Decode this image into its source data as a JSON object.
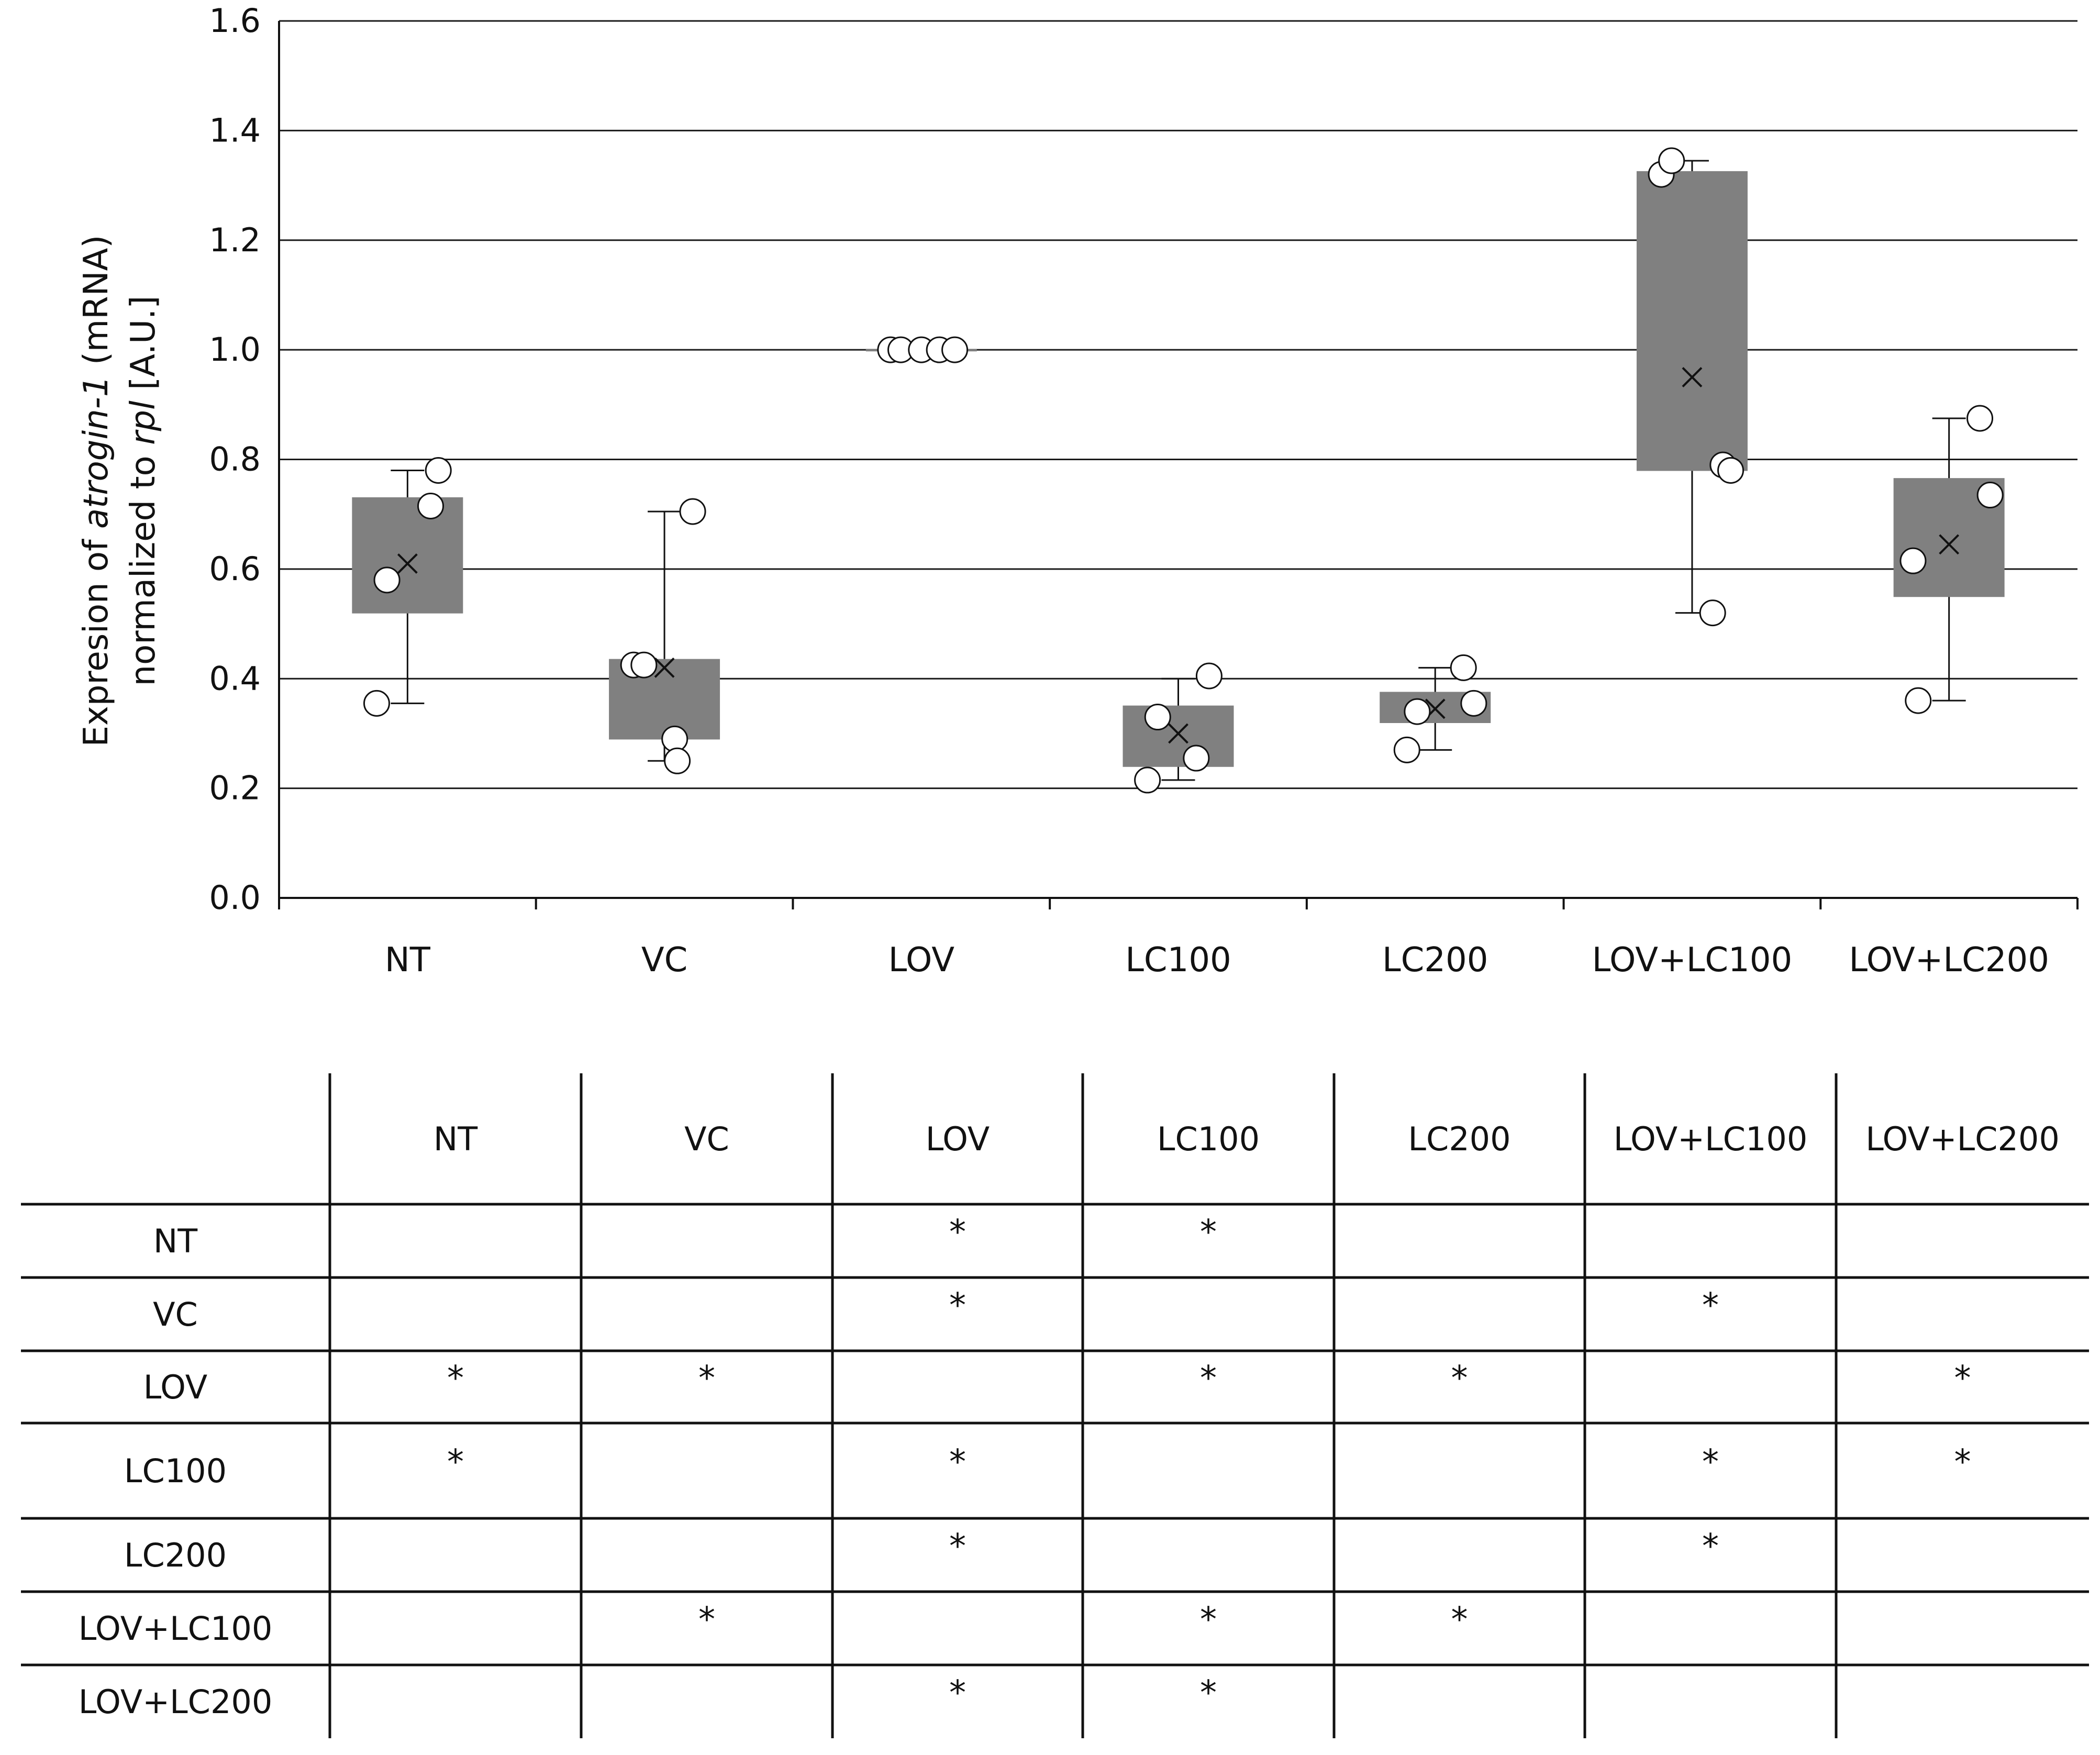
{
  "chart_data": {
    "type": "box",
    "ylabel_parts": [
      {
        "text": "Expresion of ",
        "italic": false
      },
      {
        "text": "atrogin-1",
        "italic": true
      },
      {
        "text": " (mRNA)",
        "italic": false
      }
    ],
    "ylabel_line2_parts": [
      {
        "text": "normalized to ",
        "italic": false
      },
      {
        "text": "rpl",
        "italic": true
      },
      {
        "text": " [A.U.]",
        "italic": false
      }
    ],
    "ylim": [
      0.0,
      1.6
    ],
    "yticks": [
      "0.0",
      "0.2",
      "0.4",
      "0.6",
      "0.8",
      "1.0",
      "1.2",
      "1.4",
      "1.6"
    ],
    "grid": true,
    "categories": [
      "NT",
      "VC",
      "LOV",
      "LC100",
      "LC200",
      "LOV+LC100",
      "LOV+LC200"
    ],
    "groups": [
      {
        "q1": 0.52,
        "q3": 0.73,
        "mean": 0.61,
        "whisker_low": 0.355,
        "whisker_high": 0.78,
        "points": [
          [
            -0.12,
            0.355
          ],
          [
            -0.08,
            0.58
          ],
          [
            0.09,
            0.715
          ],
          [
            0.12,
            0.78
          ]
        ]
      },
      {
        "q1": 0.29,
        "q3": 0.435,
        "mean": 0.42,
        "whisker_low": 0.25,
        "whisker_high": 0.705,
        "points": [
          [
            -0.12,
            0.425
          ],
          [
            -0.08,
            0.425
          ],
          [
            0.04,
            0.29
          ],
          [
            0.05,
            0.25
          ],
          [
            0.11,
            0.705
          ]
        ]
      },
      {
        "q1": 1.0,
        "q3": 1.0,
        "mean": 1.0,
        "whisker_low": 1.0,
        "whisker_high": 1.0,
        "points": [
          [
            -0.12,
            1.0
          ],
          [
            -0.08,
            1.0
          ],
          [
            0.0,
            1.0
          ],
          [
            0.07,
            1.0
          ],
          [
            0.13,
            1.0
          ]
        ]
      },
      {
        "q1": 0.24,
        "q3": 0.35,
        "mean": 0.3,
        "whisker_low": 0.215,
        "whisker_high": 0.4,
        "points": [
          [
            -0.12,
            0.215
          ],
          [
            -0.08,
            0.33
          ],
          [
            0.07,
            0.255
          ],
          [
            0.12,
            0.405
          ]
        ]
      },
      {
        "q1": 0.32,
        "q3": 0.375,
        "mean": 0.345,
        "whisker_low": 0.27,
        "whisker_high": 0.42,
        "points": [
          [
            -0.11,
            0.27
          ],
          [
            -0.07,
            0.34
          ],
          [
            0.11,
            0.42
          ],
          [
            0.15,
            0.355
          ]
        ]
      },
      {
        "q1": 0.78,
        "q3": 1.325,
        "mean": 0.95,
        "whisker_low": 0.52,
        "whisker_high": 1.345,
        "points": [
          [
            -0.12,
            1.32
          ],
          [
            -0.08,
            1.345
          ],
          [
            0.08,
            0.52
          ],
          [
            0.12,
            0.79
          ],
          [
            0.15,
            0.78
          ]
        ]
      },
      {
        "q1": 0.55,
        "q3": 0.765,
        "mean": 0.645,
        "whisker_low": 0.36,
        "whisker_high": 0.875,
        "points": [
          [
            -0.12,
            0.36
          ],
          [
            -0.14,
            0.615
          ],
          [
            0.12,
            0.875
          ],
          [
            0.16,
            0.735
          ]
        ]
      }
    ],
    "colors": {
      "box": "#808080",
      "grid": "#1a1a1a",
      "point_fill": "#ffffff",
      "point_stroke": "#111111"
    }
  },
  "significance_table": {
    "columns": [
      "NT",
      "VC",
      "LOV",
      "LC100",
      "LC200",
      "LOV+LC100",
      "LOV+LC200"
    ],
    "rows": [
      {
        "label": "NT",
        "marks": [
          "",
          "",
          "*",
          "*",
          "",
          "",
          ""
        ]
      },
      {
        "label": "VC",
        "marks": [
          "",
          "",
          "*",
          "",
          "",
          "*",
          ""
        ]
      },
      {
        "label": "LOV",
        "marks": [
          "*",
          "*",
          "",
          "*",
          "*",
          "",
          "*"
        ]
      },
      {
        "label": "LC100",
        "marks": [
          "*",
          "",
          "*",
          "",
          "",
          "*",
          "*"
        ]
      },
      {
        "label": "LC200",
        "marks": [
          "",
          "",
          "*",
          "",
          "",
          "*",
          ""
        ]
      },
      {
        "label": "LOV+LC100",
        "marks": [
          "",
          "*",
          "",
          "*",
          "*",
          "",
          ""
        ]
      },
      {
        "label": "LOV+LC200",
        "marks": [
          "",
          "",
          "*",
          "*",
          "",
          "",
          ""
        ]
      }
    ]
  }
}
